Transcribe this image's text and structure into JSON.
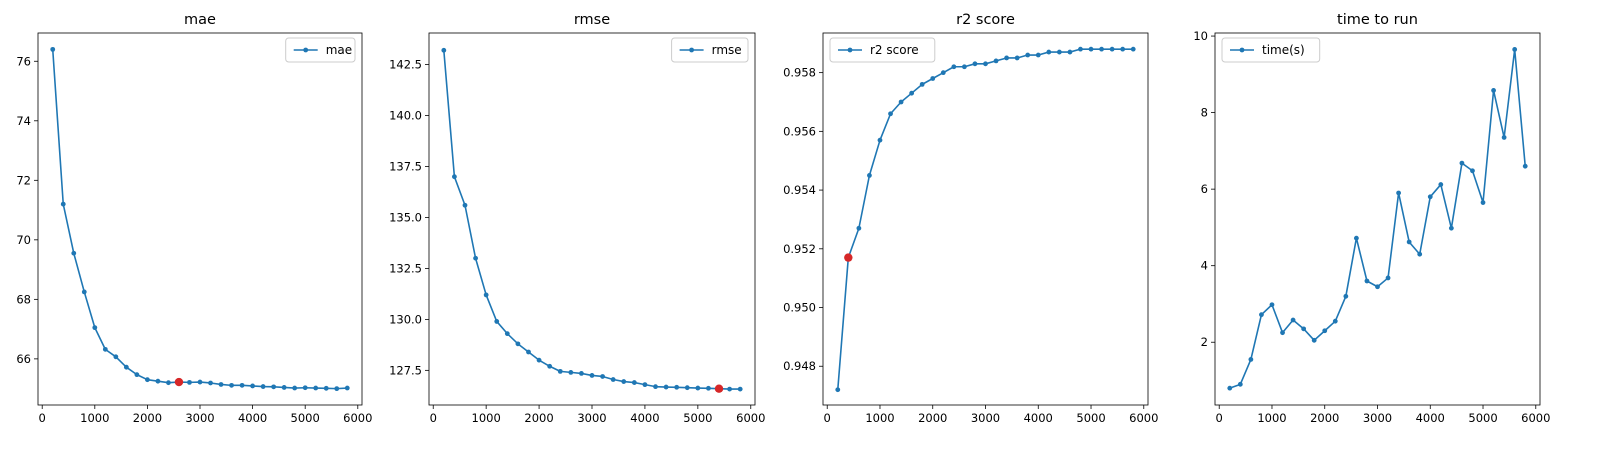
{
  "colors": {
    "line": "#1f77b4",
    "highlight": "#d62728",
    "axis": "#000000",
    "legend_border": "#cccccc"
  },
  "chart_data": [
    {
      "type": "line",
      "title": "mae",
      "legend": "mae",
      "legend_loc": "upper right",
      "x": [
        200,
        400,
        600,
        800,
        1000,
        1200,
        1400,
        1600,
        1800,
        2000,
        2200,
        2400,
        2600,
        2800,
        3000,
        3200,
        3400,
        3600,
        3800,
        4000,
        4200,
        4400,
        4600,
        4800,
        5000,
        5200,
        5400,
        5600,
        5800
      ],
      "values": [
        76.4,
        71.2,
        69.55,
        68.25,
        67.05,
        66.32,
        66.07,
        65.72,
        65.47,
        65.3,
        65.25,
        65.2,
        65.22,
        65.21,
        65.22,
        65.19,
        65.14,
        65.11,
        65.11,
        65.09,
        65.07,
        65.06,
        65.04,
        65.02,
        65.03,
        65.02,
        65.01,
        65.0,
        65.02
      ],
      "highlight": {
        "x": 2600,
        "y": 65.22
      },
      "xlim": [
        -80,
        6080
      ],
      "ylim": [
        64.45,
        76.95
      ],
      "xticks": [
        0,
        1000,
        2000,
        3000,
        4000,
        5000,
        6000
      ],
      "xtick_labels": [
        "0",
        "1000",
        "2000",
        "3000",
        "4000",
        "5000",
        "6000"
      ],
      "yticks": [
        66,
        68,
        70,
        72,
        74,
        76
      ],
      "ytick_labels": [
        "66",
        "68",
        "70",
        "72",
        "74",
        "76"
      ]
    },
    {
      "type": "line",
      "title": "rmse",
      "legend": "rmse",
      "legend_loc": "upper right",
      "x": [
        200,
        400,
        600,
        800,
        1000,
        1200,
        1400,
        1600,
        1800,
        2000,
        2200,
        2400,
        2600,
        2800,
        3000,
        3200,
        3400,
        3600,
        3800,
        4000,
        4200,
        4400,
        4600,
        4800,
        5000,
        5200,
        5400,
        5600,
        5800
      ],
      "values": [
        143.2,
        137.0,
        135.6,
        133.0,
        131.2,
        129.9,
        129.3,
        128.8,
        128.4,
        128.0,
        127.7,
        127.45,
        127.4,
        127.35,
        127.25,
        127.2,
        127.05,
        126.95,
        126.9,
        126.8,
        126.7,
        126.68,
        126.67,
        126.65,
        126.63,
        126.62,
        126.6,
        126.58,
        126.58
      ],
      "highlight": {
        "x": 5400,
        "y": 126.6
      },
      "xlim": [
        -80,
        6080
      ],
      "ylim": [
        125.8,
        144.05
      ],
      "xticks": [
        0,
        1000,
        2000,
        3000,
        4000,
        5000,
        6000
      ],
      "xtick_labels": [
        "0",
        "1000",
        "2000",
        "3000",
        "4000",
        "5000",
        "6000"
      ],
      "yticks": [
        127.5,
        130.0,
        132.5,
        135.0,
        137.5,
        140.0,
        142.5
      ],
      "ytick_labels": [
        "127.5",
        "130.0",
        "132.5",
        "135.0",
        "137.5",
        "140.0",
        "142.5"
      ]
    },
    {
      "type": "line",
      "title": "r2 score",
      "legend": "r2 score",
      "legend_loc": "upper left",
      "x": [
        200,
        400,
        600,
        800,
        1000,
        1200,
        1400,
        1600,
        1800,
        2000,
        2200,
        2400,
        2600,
        2800,
        3000,
        3200,
        3400,
        3600,
        3800,
        4000,
        4200,
        4400,
        4600,
        4800,
        5000,
        5200,
        5400,
        5600,
        5800
      ],
      "values": [
        0.9472,
        0.9517,
        0.9527,
        0.9545,
        0.9557,
        0.9566,
        0.957,
        0.9573,
        0.9576,
        0.9578,
        0.958,
        0.9582,
        0.9582,
        0.9583,
        0.9583,
        0.9584,
        0.9585,
        0.9585,
        0.9586,
        0.9586,
        0.9587,
        0.9587,
        0.9587,
        0.9588,
        0.9588,
        0.9588,
        0.9588,
        0.9588,
        0.9588
      ],
      "highlight": {
        "x": 400,
        "y": 0.9517
      },
      "xlim": [
        -80,
        6080
      ],
      "ylim": [
        0.94668,
        0.95935
      ],
      "xticks": [
        0,
        1000,
        2000,
        3000,
        4000,
        5000,
        6000
      ],
      "xtick_labels": [
        "0",
        "1000",
        "2000",
        "3000",
        "4000",
        "5000",
        "6000"
      ],
      "yticks": [
        0.948,
        0.95,
        0.952,
        0.954,
        0.956,
        0.958
      ],
      "ytick_labels": [
        "0.948",
        "0.950",
        "0.952",
        "0.954",
        "0.956",
        "0.958"
      ]
    },
    {
      "type": "line",
      "title": "time to run",
      "legend": "time(s)",
      "legend_loc": "upper left",
      "x": [
        200,
        400,
        600,
        800,
        1000,
        1200,
        1400,
        1600,
        1800,
        2000,
        2200,
        2400,
        2600,
        2800,
        3000,
        3200,
        3400,
        3600,
        3800,
        4000,
        4200,
        4400,
        4600,
        4800,
        5000,
        5200,
        5400,
        5600,
        5800
      ],
      "values": [
        0.8,
        0.9,
        1.55,
        2.72,
        2.98,
        2.25,
        2.58,
        2.35,
        2.05,
        2.3,
        2.55,
        3.2,
        4.72,
        3.6,
        3.45,
        3.68,
        5.9,
        4.62,
        4.3,
        5.8,
        6.12,
        4.98,
        6.68,
        6.48,
        5.65,
        8.58,
        7.35,
        9.65,
        6.6
      ],
      "xlim": [
        -80,
        6080
      ],
      "ylim": [
        0.36,
        10.08
      ],
      "xticks": [
        0,
        1000,
        2000,
        3000,
        4000,
        5000,
        6000
      ],
      "xtick_labels": [
        "0",
        "1000",
        "2000",
        "3000",
        "4000",
        "5000",
        "6000"
      ],
      "yticks": [
        2,
        4,
        6,
        8,
        10
      ],
      "ytick_labels": [
        "2",
        "4",
        "6",
        "8",
        "10"
      ]
    }
  ]
}
